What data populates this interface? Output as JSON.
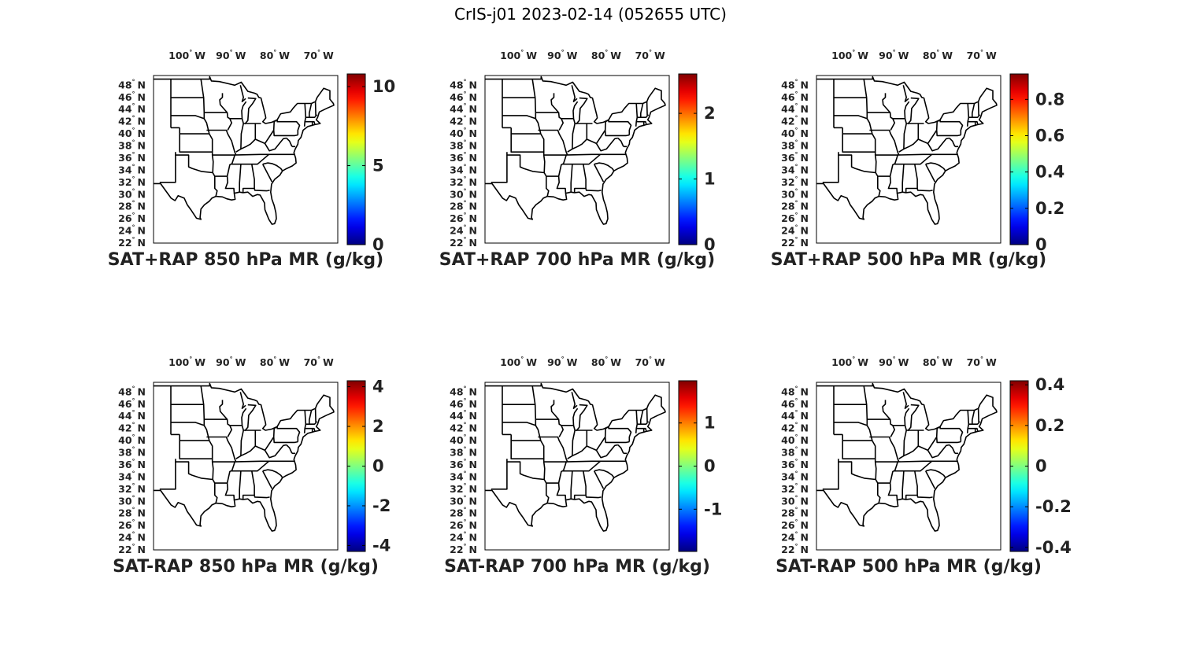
{
  "figure": {
    "title": "CrIS-j01 2023-02-14 (052655 UTC)",
    "lon_ticks": [
      "100",
      "90",
      "80",
      "70"
    ],
    "lon_hemisphere": "W",
    "lat_ticks": [
      "48",
      "46",
      "44",
      "42",
      "40",
      "38",
      "36",
      "34",
      "32",
      "30",
      "28",
      "26",
      "24",
      "22"
    ],
    "lat_hemisphere": "N",
    "degree_symbol": "°",
    "colormap": "jet"
  },
  "panels": [
    {
      "title": "SAT+RAP 850 hPa MR (g/kg)",
      "colorbar": {
        "min": 0,
        "max": 10.8,
        "ticks": [
          {
            "v": 0,
            "label": "0"
          },
          {
            "v": 5,
            "label": "5"
          },
          {
            "v": 10,
            "label": "10"
          }
        ]
      }
    },
    {
      "title": "SAT+RAP 700 hPa MR (g/kg)",
      "colorbar": {
        "min": 0,
        "max": 2.6,
        "ticks": [
          {
            "v": 0,
            "label": "0"
          },
          {
            "v": 1,
            "label": "1"
          },
          {
            "v": 2,
            "label": "2"
          }
        ]
      }
    },
    {
      "title": "SAT+RAP 500 hPa MR (g/kg)",
      "colorbar": {
        "min": 0,
        "max": 0.94,
        "ticks": [
          {
            "v": 0,
            "label": "0"
          },
          {
            "v": 0.2,
            "label": "0.2"
          },
          {
            "v": 0.4,
            "label": "0.4"
          },
          {
            "v": 0.6,
            "label": "0.6"
          },
          {
            "v": 0.8,
            "label": "0.8"
          }
        ]
      }
    },
    {
      "title": "SAT-RAP 850 hPa MR (g/kg)",
      "colorbar": {
        "min": -4.3,
        "max": 4.3,
        "ticks": [
          {
            "v": -4,
            "label": "-4"
          },
          {
            "v": -2,
            "label": "-2"
          },
          {
            "v": 0,
            "label": "0"
          },
          {
            "v": 2,
            "label": "2"
          },
          {
            "v": 4,
            "label": "4"
          }
        ]
      }
    },
    {
      "title": "SAT-RAP 700 hPa MR (g/kg)",
      "colorbar": {
        "min": -1.98,
        "max": 1.98,
        "ticks": [
          {
            "v": -1,
            "label": "-1"
          },
          {
            "v": 0,
            "label": "0"
          },
          {
            "v": 1,
            "label": "1"
          }
        ]
      }
    },
    {
      "title": "SAT-RAP 500 hPa MR (g/kg)",
      "colorbar": {
        "min": -0.42,
        "max": 0.42,
        "ticks": [
          {
            "v": -0.4,
            "label": "-0.4"
          },
          {
            "v": -0.2,
            "label": "-0.2"
          },
          {
            "v": 0,
            "label": "0"
          },
          {
            "v": 0.2,
            "label": "0.2"
          },
          {
            "v": 0.4,
            "label": "0.4"
          }
        ]
      }
    }
  ]
}
